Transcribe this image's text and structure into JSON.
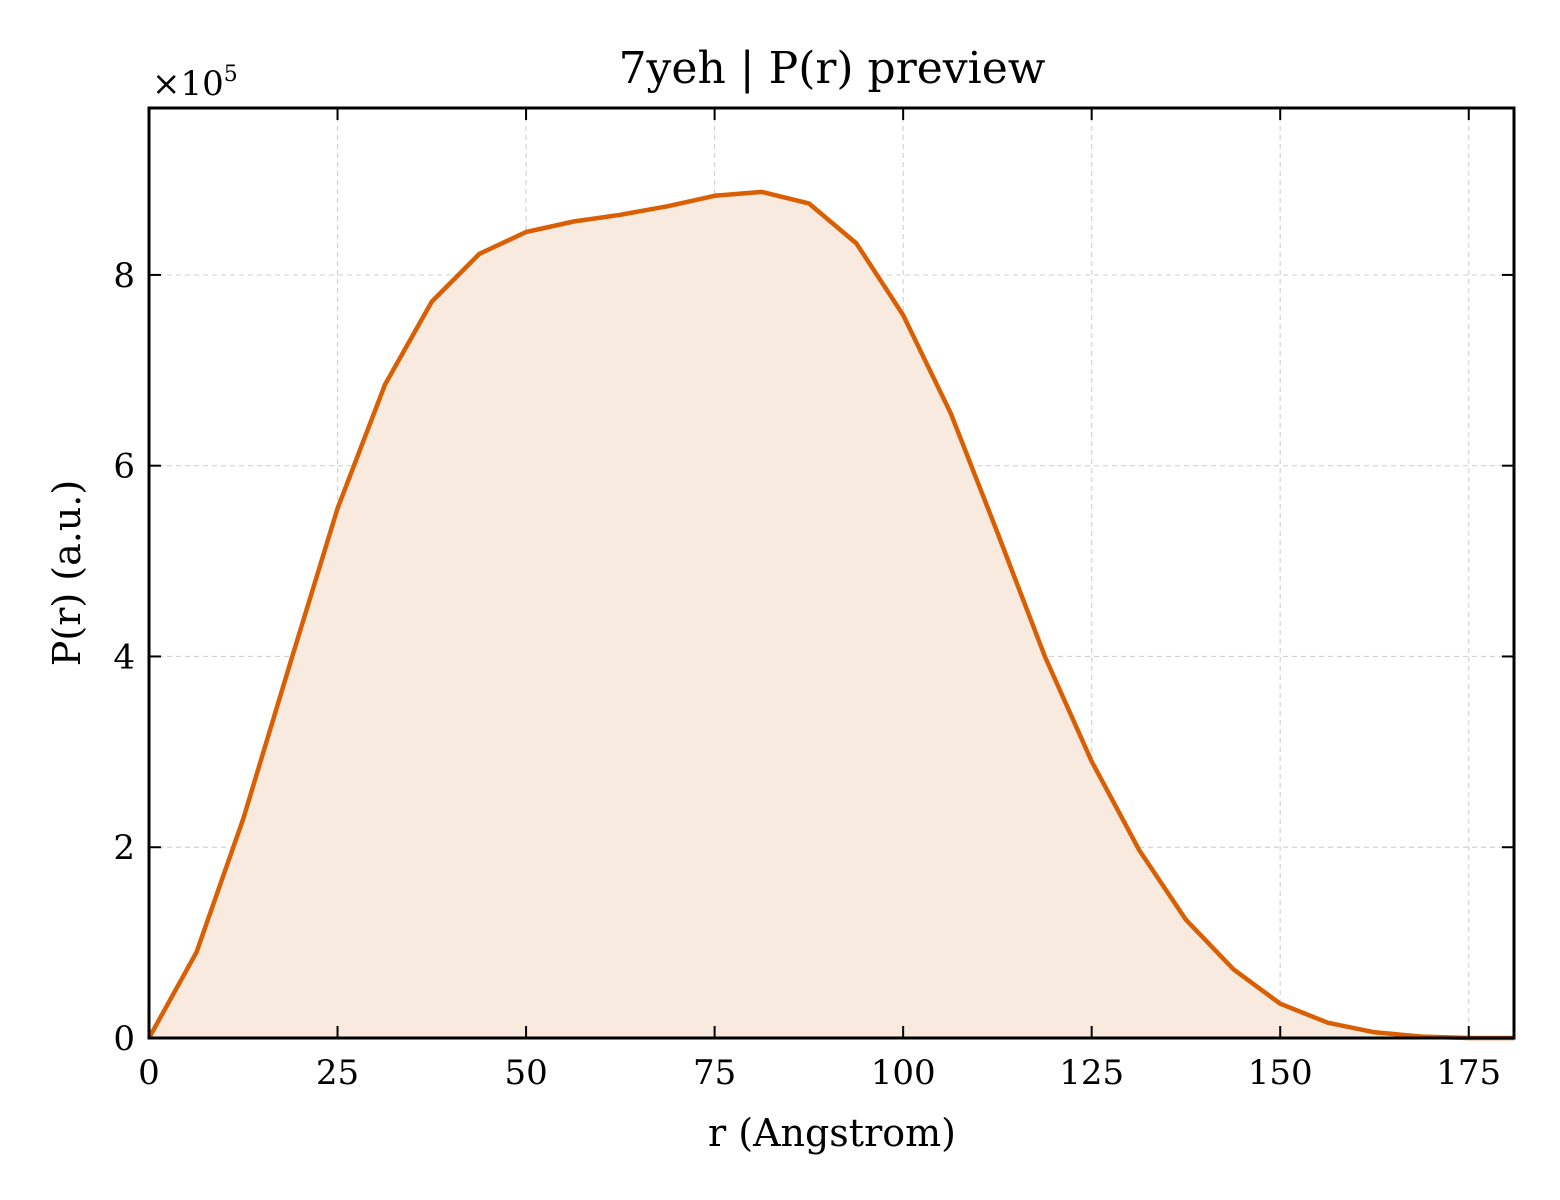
{
  "chart_data": {
    "type": "area",
    "title": "7yeh | P(r) preview",
    "xlabel": "r (Angstrom)",
    "ylabel": "P(r) (a.u.)",
    "y_offset": {
      "base": "×10",
      "exponent": "5"
    },
    "xlim": [
      0,
      181
    ],
    "ylim": [
      0,
      9.75
    ],
    "x_ticks": [
      0,
      25,
      50,
      75,
      100,
      125,
      150,
      175
    ],
    "y_ticks": [
      0,
      2,
      4,
      6,
      8
    ],
    "grid": true,
    "series": [
      {
        "x": [
          0,
          6.3,
          12.5,
          18.8,
          25,
          31.3,
          37.5,
          43.8,
          50,
          56.3,
          62.5,
          68.8,
          75,
          81.3,
          87.5,
          93.8,
          100,
          106.3,
          112.5,
          118.8,
          125,
          131.3,
          137.5,
          143.8,
          150,
          156.3,
          162.5,
          168.8,
          175,
          181
        ],
        "y": [
          0,
          0.9,
          2.3,
          3.95,
          5.55,
          6.85,
          7.72,
          8.22,
          8.45,
          8.56,
          8.63,
          8.72,
          8.83,
          8.87,
          8.75,
          8.33,
          7.58,
          6.55,
          5.3,
          4.0,
          2.9,
          1.97,
          1.24,
          0.72,
          0.36,
          0.16,
          0.06,
          0.015,
          0.0,
          0.0
        ]
      }
    ],
    "colors": {
      "line": "#d95f02",
      "fill": "#f8eadf"
    }
  }
}
